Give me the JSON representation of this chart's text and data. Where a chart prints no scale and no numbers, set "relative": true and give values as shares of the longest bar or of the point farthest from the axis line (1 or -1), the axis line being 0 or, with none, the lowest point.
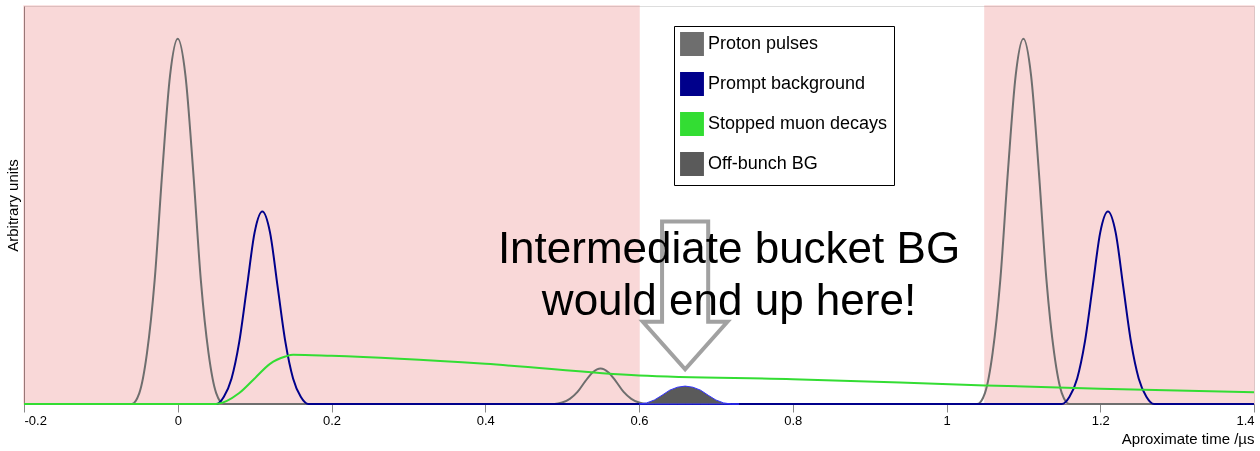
{
  "chart_data": {
    "type": "line",
    "relative": true,
    "xlabel": "Aproximate time /µs",
    "ylabel": "Arbitrary units",
    "xlim": [
      -0.2,
      1.4
    ],
    "xticks": [
      -0.2,
      0,
      0.2,
      0.4,
      0.6,
      0.8,
      1,
      1.2,
      1.4
    ],
    "tick_labels": "x",
    "grid": false,
    "legend": "top right",
    "series": [
      {
        "name": "Proton pulses",
        "color": "#6e6e6e",
        "x": [
          -0.2,
          -0.06,
          -0.05,
          -0.04,
          -0.03,
          -0.02,
          -0.01,
          0,
          0.01,
          0.02,
          0.03,
          0.04,
          0.05,
          0.06,
          0.49,
          0.5,
          0.51,
          0.52,
          0.53,
          0.54,
          0.55,
          0.56,
          0.57,
          0.58,
          0.59,
          0.6,
          0.61,
          1.04,
          1.05,
          1.06,
          1.07,
          1.08,
          1.09,
          1.1,
          1.11,
          1.12,
          1.13,
          1.14,
          1.15,
          1.16,
          1.4
        ],
        "values": [
          0,
          0,
          0.03,
          0.14,
          0.34,
          0.64,
          0.9,
          1,
          0.9,
          0.64,
          0.34,
          0.14,
          0.03,
          0,
          0,
          0.004,
          0.014,
          0.033,
          0.062,
          0.087,
          0.097,
          0.087,
          0.062,
          0.033,
          0.014,
          0.004,
          0,
          0,
          0.03,
          0.14,
          0.34,
          0.64,
          0.9,
          1,
          0.9,
          0.64,
          0.34,
          0.14,
          0.03,
          0,
          0
        ]
      },
      {
        "name": "Prompt background",
        "color": "#00008b",
        "x": [
          -0.2,
          0.05,
          0.06,
          0.07,
          0.08,
          0.09,
          0.1,
          0.11,
          0.12,
          0.13,
          0.14,
          0.15,
          0.16,
          0.17,
          1.15,
          1.16,
          1.17,
          1.18,
          1.19,
          1.2,
          1.21,
          1.22,
          1.23,
          1.24,
          1.25,
          1.26,
          1.27,
          1.28,
          1.4
        ],
        "values": [
          0,
          0,
          0.02,
          0.07,
          0.17,
          0.32,
          0.47,
          0.527,
          0.47,
          0.32,
          0.17,
          0.07,
          0.02,
          0,
          0,
          0.02,
          0.07,
          0.17,
          0.32,
          0.47,
          0.527,
          0.47,
          0.32,
          0.17,
          0.07,
          0.02,
          0,
          0,
          0
        ]
      },
      {
        "name": "Stopped muon decays",
        "color": "#33dd33",
        "x": [
          -0.2,
          0.05,
          0.08,
          0.1,
          0.12,
          0.14,
          0.15,
          0.2,
          0.4,
          0.6,
          0.8,
          1.05,
          1.2,
          1.4
        ],
        "values": [
          0,
          0,
          0.03,
          0.07,
          0.11,
          0.13,
          0.135,
          0.132,
          0.11,
          0.078,
          0.068,
          0.051,
          0.042,
          0.032
        ]
      },
      {
        "name": "Off-bunch BG",
        "type": "area",
        "color": "#5a5a5a",
        "x": [
          0.6,
          0.61,
          0.62,
          0.63,
          0.64,
          0.65,
          0.66,
          0.67,
          0.68,
          0.69,
          0.7,
          0.71,
          0.72,
          0.73
        ],
        "values": [
          0,
          0.003,
          0.011,
          0.024,
          0.038,
          0.046,
          0.049,
          0.046,
          0.038,
          0.024,
          0.011,
          0.003,
          0,
          0
        ]
      }
    ],
    "bands": [
      {
        "axis": "x",
        "from": -0.2,
        "to": 0.6,
        "color": "#e03030"
      },
      {
        "axis": "x",
        "from": 1.05,
        "to": 1.4,
        "color": "#e03030"
      }
    ],
    "annotations": [
      "Intermediate bucket BG\nwould end up here!"
    ]
  }
}
